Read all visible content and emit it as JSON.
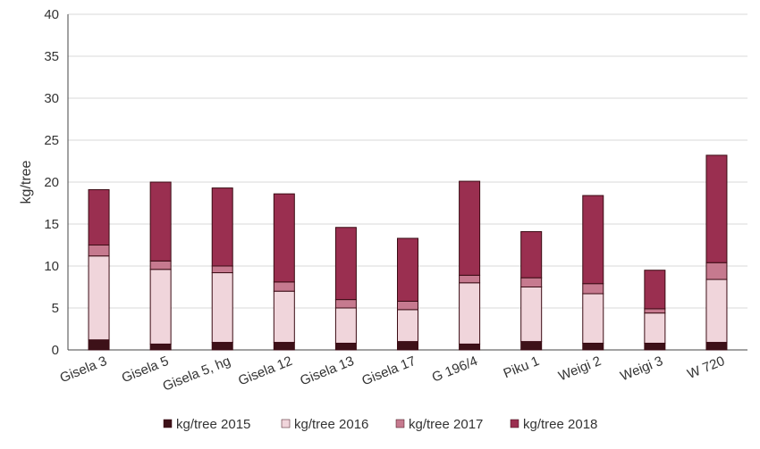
{
  "chart_data": {
    "type": "bar",
    "stacked": true,
    "categories": [
      "Gisela 3",
      "Gisela 5",
      "Gisela 5, hg",
      "Gisela 12",
      "Gisela 13",
      "Gisela 17",
      "G 196/4",
      "Piku 1",
      "Weigi 2",
      "Weigi 3",
      "W 720"
    ],
    "series": [
      {
        "name": "kg/tree 2015",
        "color": "#3d1118",
        "values": [
          1.2,
          0.7,
          0.9,
          0.9,
          0.8,
          1.0,
          0.7,
          1.0,
          0.8,
          0.8,
          0.9
        ]
      },
      {
        "name": "kg/tree 2016",
        "color": "#f0d5db",
        "values": [
          10.0,
          8.9,
          8.3,
          6.1,
          4.2,
          3.8,
          7.3,
          6.5,
          5.9,
          3.6,
          7.5
        ]
      },
      {
        "name": "kg/tree 2017",
        "color": "#c67a8f",
        "values": [
          1.3,
          1.0,
          0.8,
          1.1,
          1.0,
          1.0,
          0.9,
          1.1,
          1.2,
          0.5,
          2.0
        ]
      },
      {
        "name": "kg/tree 2018",
        "color": "#9a2f50",
        "values": [
          6.6,
          9.4,
          9.3,
          10.5,
          8.6,
          7.5,
          11.2,
          5.5,
          10.5,
          4.6,
          12.8
        ]
      }
    ],
    "ylabel": "kg/tree",
    "xlabel": "",
    "ylim": [
      0,
      40
    ],
    "yticks": [
      0,
      5,
      10,
      15,
      20,
      25,
      30,
      35,
      40
    ],
    "grid": true,
    "legend_position": "bottom"
  }
}
